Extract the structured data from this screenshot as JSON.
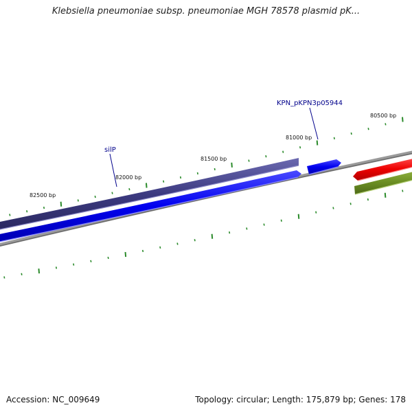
{
  "title": "Klebsiella pneumoniae subsp. pneumoniae MGH 78578 plasmid pK...",
  "footer": {
    "accession_label": "Accession:",
    "accession_value": "NC_009649",
    "topology_label": "Topology:",
    "topology_value": "circular",
    "length_label": "Length:",
    "length_value": "175,879 bp",
    "genes_label": "Genes:",
    "genes_value": "178"
  },
  "scale_labels": [
    {
      "text": "80500 bp",
      "position_bp": 80500
    },
    {
      "text": "81000 bp",
      "position_bp": 81000
    },
    {
      "text": "81500 bp",
      "position_bp": 81500
    },
    {
      "text": "82000 bp",
      "position_bp": 82000
    },
    {
      "text": "82500 bp",
      "position_bp": 82500
    }
  ],
  "gene_labels": [
    {
      "text": "KPN_pKPN3p05944"
    },
    {
      "text": "silP"
    }
  ],
  "colors": {
    "backbone": "#808080",
    "tick": "#2a8a2a",
    "label_blue": "#00008b",
    "feature_navy": "#3c3a80",
    "feature_blue": "#0000ee",
    "feature_red": "#ee0000",
    "feature_olive": "#6b8e23"
  }
}
